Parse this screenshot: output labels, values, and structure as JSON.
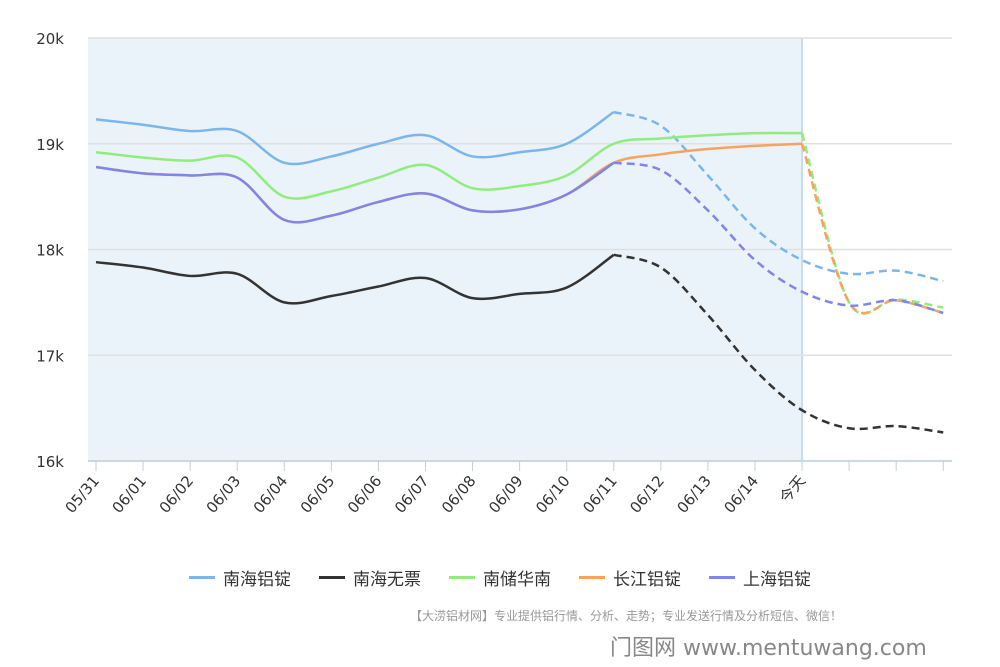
{
  "chart_data": {
    "type": "line",
    "categories": [
      "05/31",
      "06/01",
      "06/02",
      "06/03",
      "06/04",
      "06/05",
      "06/06",
      "06/07",
      "06/08",
      "06/09",
      "06/10",
      "06/11",
      "06/12",
      "06/13",
      "06/14",
      "今天",
      "",
      "",
      ""
    ],
    "ylim": [
      16000,
      20000
    ],
    "yticks": [
      16000,
      17000,
      18000,
      19000,
      20000
    ],
    "ytick_labels": [
      "16k",
      "17k",
      "18k",
      "19k",
      "20k"
    ],
    "grid": true,
    "shaded_until": "今天",
    "legend_position": "bottom",
    "series": [
      {
        "name": "南海铝锭",
        "color": "#7cb5ec",
        "solid_until": 11,
        "values": [
          19230,
          19180,
          19120,
          19120,
          18820,
          18880,
          19000,
          19080,
          18880,
          18920,
          19000,
          19300,
          19170,
          18700,
          18200,
          17900,
          17770,
          17800,
          17700
        ]
      },
      {
        "name": "南海无票",
        "color": "#333333",
        "solid_until": 11,
        "values": [
          17880,
          17830,
          17750,
          17770,
          17500,
          17560,
          17650,
          17730,
          17540,
          17580,
          17640,
          17950,
          17830,
          17380,
          16860,
          16480,
          16310,
          16330,
          16270
        ]
      },
      {
        "name": "南储华南",
        "color": "#90ed7d",
        "solid_until": 15,
        "values": [
          18920,
          18870,
          18840,
          18870,
          18500,
          18550,
          18680,
          18800,
          18580,
          18600,
          18700,
          19000,
          19050,
          19080,
          19100,
          19100,
          17500,
          17530,
          17450
        ]
      },
      {
        "name": "长江铝锭",
        "color": "#f7a35c",
        "solid_until": 15,
        "values": [
          18780,
          18720,
          18700,
          18680,
          18280,
          18320,
          18450,
          18530,
          18370,
          18380,
          18520,
          18820,
          18900,
          18950,
          18980,
          19000,
          17500,
          17520,
          17400
        ]
      },
      {
        "name": "上海铝锭",
        "color": "#8085e9",
        "solid_until": 11,
        "values": [
          18780,
          18720,
          18700,
          18680,
          18280,
          18320,
          18450,
          18530,
          18370,
          18380,
          18520,
          18820,
          18750,
          18370,
          17900,
          17600,
          17470,
          17520,
          17400
        ]
      }
    ]
  },
  "footer": "【大涝铝材网】专业提供铝行情、分析、走势；专业发送行情及分析短信、微信！",
  "watermark": "门图网 www.mentuwang.com"
}
